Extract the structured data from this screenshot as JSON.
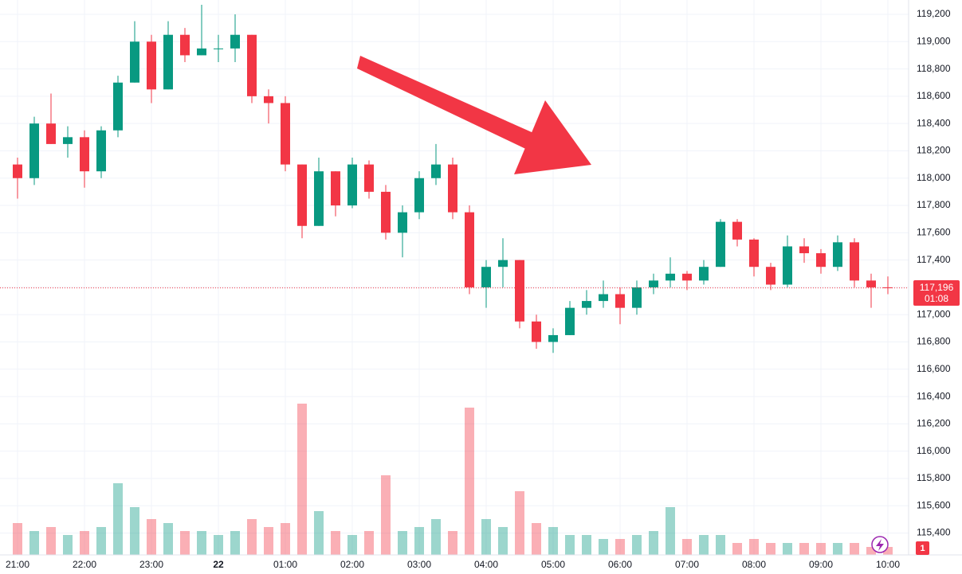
{
  "chart_data": {
    "type": "candlestick",
    "categories": [
      "21:00",
      null,
      null,
      null,
      "22:00",
      null,
      null,
      null,
      "23:00",
      null,
      null,
      null,
      "22",
      null,
      null,
      null,
      "01:00",
      null,
      null,
      null,
      "02:00",
      null,
      null,
      null,
      "03:00",
      null,
      null,
      null,
      "04:00",
      null,
      null,
      null,
      "05:00",
      null,
      null,
      null,
      "06:00",
      null,
      null,
      null,
      "07:00",
      null,
      null,
      null,
      "08:00",
      null,
      null,
      null,
      "09:00",
      null,
      null,
      null,
      "10:00"
    ],
    "open": [
      118100,
      118000,
      118400,
      118250,
      118300,
      118050,
      118350,
      118700,
      119000,
      118650,
      119050,
      118900,
      118950,
      118950,
      119050,
      118600,
      118550,
      118100,
      117650,
      118050,
      117800,
      118100,
      117900,
      117600,
      117750,
      118000,
      118100,
      117750,
      117200,
      117350,
      117400,
      116950,
      116800,
      116850,
      117050,
      117100,
      117150,
      117050,
      117200,
      117250,
      117300,
      117250,
      117350,
      117680,
      117550,
      117350,
      117220,
      117500,
      117450,
      117350,
      117530,
      117250,
      117200
    ],
    "high": [
      118150,
      118450,
      118620,
      118380,
      118350,
      118380,
      118750,
      119150,
      119050,
      119150,
      119100,
      119270,
      119050,
      119200,
      119050,
      118650,
      118600,
      118100,
      118150,
      118050,
      118150,
      118130,
      117950,
      117800,
      118050,
      118250,
      118150,
      117800,
      117400,
      117560,
      117400,
      117000,
      116900,
      117100,
      117180,
      117250,
      117200,
      117250,
      117300,
      117420,
      117320,
      117400,
      117700,
      117700,
      117560,
      117380,
      117580,
      117560,
      117480,
      117580,
      117560,
      117300,
      117280
    ],
    "low": [
      117850,
      117950,
      118250,
      118150,
      117930,
      118000,
      118300,
      118700,
      118550,
      118650,
      118850,
      118900,
      118850,
      118850,
      118550,
      118400,
      118050,
      117560,
      117650,
      117720,
      117780,
      117850,
      117550,
      117420,
      117700,
      117950,
      117700,
      117150,
      117050,
      117200,
      116900,
      116750,
      116720,
      116850,
      117000,
      117050,
      116930,
      117000,
      117150,
      117200,
      117180,
      117220,
      117350,
      117500,
      117280,
      117180,
      117200,
      117380,
      117300,
      117320,
      117200,
      117050,
      117150
    ],
    "close": [
      118000,
      118400,
      118250,
      118300,
      118050,
      118350,
      118700,
      119000,
      118650,
      119050,
      118900,
      118950,
      118950,
      119050,
      118600,
      118550,
      118100,
      117650,
      118050,
      117800,
      118100,
      117900,
      117600,
      117750,
      118000,
      118100,
      117750,
      117200,
      117350,
      117400,
      116950,
      116800,
      116850,
      117050,
      117100,
      117150,
      117050,
      117200,
      117250,
      117300,
      117250,
      117350,
      117680,
      117550,
      117350,
      117220,
      117500,
      117450,
      117350,
      117530,
      117250,
      117200,
      117196
    ],
    "volume": [
      40,
      30,
      35,
      25,
      30,
      35,
      90,
      60,
      45,
      40,
      30,
      30,
      25,
      30,
      45,
      35,
      40,
      190,
      55,
      30,
      25,
      30,
      100,
      30,
      35,
      45,
      30,
      185,
      45,
      35,
      80,
      40,
      35,
      25,
      25,
      20,
      20,
      25,
      30,
      60,
      20,
      25,
      25,
      15,
      20,
      15,
      15,
      15,
      15,
      15,
      15,
      10,
      10
    ],
    "up_color": "#089981",
    "down_color": "#f23645",
    "ylim": [
      115240,
      119305
    ],
    "yticks": [
      {
        "value": 115400,
        "label": "115,400"
      },
      {
        "value": 115600,
        "label": "115,600"
      },
      {
        "value": 115800,
        "label": "115,800"
      },
      {
        "value": 116000,
        "label": "116,000"
      },
      {
        "value": 116200,
        "label": "116,200"
      },
      {
        "value": 116400,
        "label": "116,400"
      },
      {
        "value": 116600,
        "label": "116,600"
      },
      {
        "value": 116800,
        "label": "116,800"
      },
      {
        "value": 117000,
        "label": "117,000"
      },
      {
        "value": 117200,
        "label": "117,200"
      },
      {
        "value": 117400,
        "label": "117,400"
      },
      {
        "value": 117600,
        "label": "117,600"
      },
      {
        "value": 117800,
        "label": "117,800"
      },
      {
        "value": 118000,
        "label": "118,000"
      },
      {
        "value": 118200,
        "label": "118,200"
      },
      {
        "value": 118400,
        "label": "118,400"
      },
      {
        "value": 118600,
        "label": "118,600"
      },
      {
        "value": 118800,
        "label": "118,800"
      },
      {
        "value": 119000,
        "label": "119,000"
      },
      {
        "value": 119200,
        "label": "119,200"
      }
    ],
    "grid": true,
    "current_price": {
      "value": 117196,
      "label": "117,196"
    },
    "countdown": "01:08",
    "badge": "1"
  }
}
